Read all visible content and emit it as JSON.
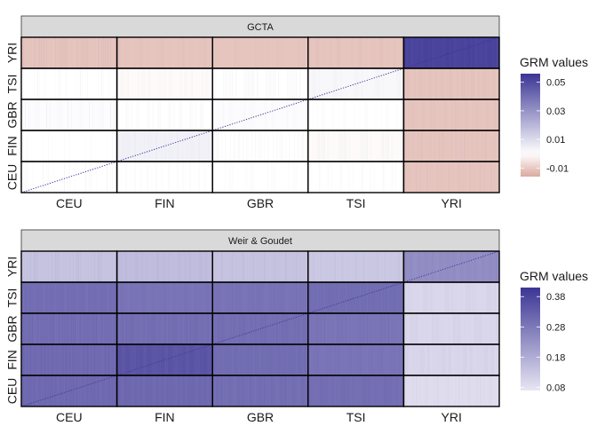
{
  "chart_data": [
    {
      "type": "heatmap",
      "panel_title": "GCTA",
      "x_categories": [
        "CEU",
        "FIN",
        "GBR",
        "TSI",
        "YRI"
      ],
      "y_categories": [
        "CEU",
        "FIN",
        "GBR",
        "TSI",
        "YRI"
      ],
      "block_values": [
        [
          0.0,
          0.0,
          0.0,
          0.0,
          -0.011
        ],
        [
          0.0,
          0.004,
          0.0,
          -0.001,
          -0.011
        ],
        [
          0.001,
          0.0,
          0.001,
          0.0,
          -0.011
        ],
        [
          0.0,
          -0.001,
          0.0,
          0.002,
          -0.011
        ],
        [
          -0.011,
          -0.011,
          -0.011,
          -0.011,
          0.052
        ]
      ],
      "diagonal_value": 0.06,
      "legend": {
        "title": "GRM values",
        "breaks": [
          -0.01,
          0.01,
          0.03,
          0.05
        ],
        "break_labels": [
          "-0.01",
          "0.01",
          "0.03",
          "0.05"
        ],
        "limits": [
          -0.016,
          0.056
        ],
        "low_color": "#dba9a0",
        "mid_color": "#ffffff",
        "high_color": "#3b3594",
        "midpoint": 0.0
      },
      "legend_position": "right"
    },
    {
      "type": "heatmap",
      "panel_title": "Weir & Goudet",
      "x_categories": [
        "CEU",
        "FIN",
        "GBR",
        "TSI",
        "YRI"
      ],
      "y_categories": [
        "CEU",
        "FIN",
        "GBR",
        "TSI",
        "YRI"
      ],
      "block_values": [
        [
          0.31,
          0.31,
          0.3,
          0.3,
          0.09
        ],
        [
          0.31,
          0.35,
          0.3,
          0.29,
          0.1
        ],
        [
          0.3,
          0.3,
          0.3,
          0.29,
          0.1
        ],
        [
          0.3,
          0.29,
          0.29,
          0.3,
          0.1
        ],
        [
          0.14,
          0.15,
          0.14,
          0.13,
          0.24
        ]
      ],
      "diagonal_value": 0.4,
      "legend": {
        "title": "GRM values",
        "breaks": [
          0.08,
          0.18,
          0.28,
          0.38
        ],
        "break_labels": [
          "0.08",
          "0.18",
          "0.28",
          "0.38"
        ],
        "limits": [
          0.07,
          0.41
        ],
        "low_color": "#e8e6f3",
        "high_color": "#3b3594"
      },
      "legend_position": "right"
    }
  ]
}
